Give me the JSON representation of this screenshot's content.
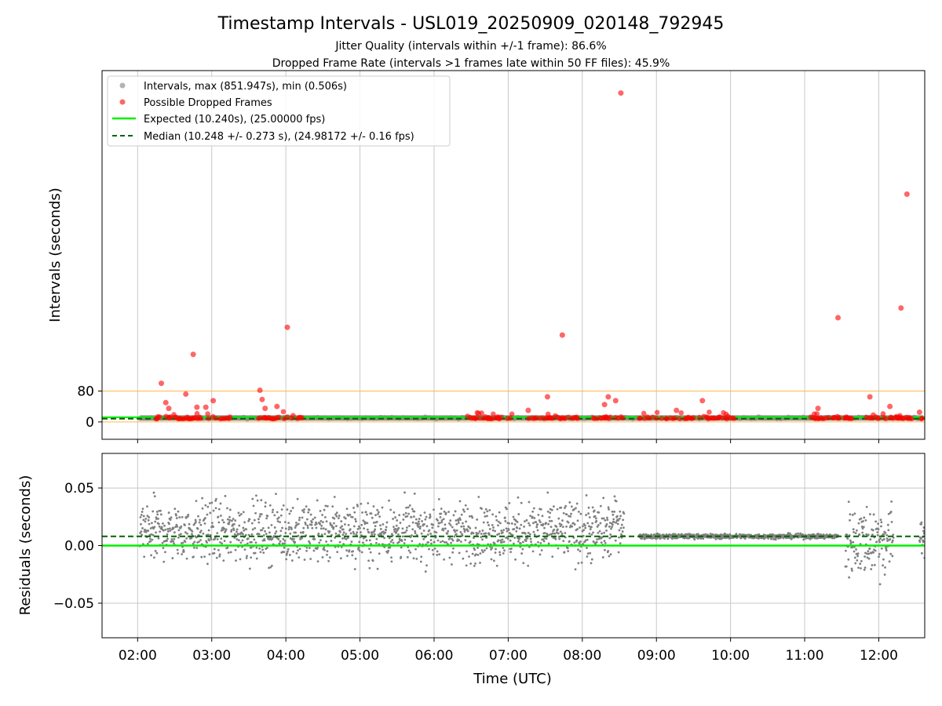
{
  "chart_data": {
    "title": "Timestamp Intervals - USL019_20250909_020148_792945",
    "subtitle_lines": [
      "Jitter Quality (intervals within +/-1 frame): 86.6%",
      "Dropped Frame Rate (intervals >1 frames late within 50 FF files): 45.9%"
    ],
    "xlabel": "Time (UTC)",
    "x_ticks": [
      "02:00",
      "03:00",
      "04:00",
      "05:00",
      "06:00",
      "07:00",
      "08:00",
      "09:00",
      "10:00",
      "11:00",
      "12:00"
    ],
    "colors": {
      "intervals": "#808080",
      "dropped": "#ff0000",
      "expected": "#00ee00",
      "median": "#006400",
      "threshold": "#ffb84d",
      "grid": "#c8c8c8"
    },
    "panels": [
      {
        "type": "scatter",
        "ylabel": "Intervals (seconds)",
        "y_ticks": [
          "0",
          "80"
        ],
        "ylim": [
          -45,
          910
        ],
        "xlim_hours": [
          1.52,
          12.62
        ],
        "threshold_lines": [
          0,
          80
        ],
        "legend_position": "upper-left",
        "legend": [
          {
            "kind": "marker",
            "color": "#808080",
            "label": "Intervals, max (851.947s), min (0.506s)"
          },
          {
            "kind": "marker",
            "color": "#ff0000",
            "label": "Possible Dropped Frames"
          },
          {
            "kind": "line",
            "color": "#00ee00",
            "label": "Expected (10.240s), (25.00000 fps)"
          },
          {
            "kind": "dashed",
            "color": "#006400",
            "label": "Median (10.248 +/- 0.273 s), (24.98172 +/- 0.16 fps)"
          }
        ],
        "expected_value": 10.24,
        "median_value": 10.248,
        "intervals_band": {
          "x_start": 2.03,
          "x_end": 12.6,
          "value": 10.24
        },
        "dropped_clusters": [
          [
            2.25,
            3.25
          ],
          [
            3.63,
            4.23
          ],
          [
            6.45,
            7.08
          ],
          [
            7.25,
            7.98
          ],
          [
            8.15,
            8.55
          ],
          [
            8.77,
            9.52
          ],
          [
            9.58,
            10.05
          ],
          [
            11.07,
            11.65
          ],
          [
            11.83,
            12.45
          ],
          [
            12.55,
            12.62
          ]
        ],
        "dropped_outliers": [
          {
            "x": 2.32,
            "y": 100
          },
          {
            "x": 2.38,
            "y": 50
          },
          {
            "x": 2.42,
            "y": 35
          },
          {
            "x": 2.65,
            "y": 72
          },
          {
            "x": 2.75,
            "y": 175
          },
          {
            "x": 2.8,
            "y": 38
          },
          {
            "x": 2.92,
            "y": 38
          },
          {
            "x": 3.02,
            "y": 55
          },
          {
            "x": 3.65,
            "y": 82
          },
          {
            "x": 3.68,
            "y": 58
          },
          {
            "x": 3.72,
            "y": 35
          },
          {
            "x": 3.88,
            "y": 40
          },
          {
            "x": 4.02,
            "y": 245
          },
          {
            "x": 6.6,
            "y": 22
          },
          {
            "x": 7.27,
            "y": 30
          },
          {
            "x": 7.53,
            "y": 65
          },
          {
            "x": 7.73,
            "y": 225
          },
          {
            "x": 8.3,
            "y": 45
          },
          {
            "x": 8.35,
            "y": 65
          },
          {
            "x": 8.45,
            "y": 55
          },
          {
            "x": 8.52,
            "y": 851.947
          },
          {
            "x": 9.27,
            "y": 30
          },
          {
            "x": 9.62,
            "y": 55
          },
          {
            "x": 11.18,
            "y": 35
          },
          {
            "x": 11.45,
            "y": 270
          },
          {
            "x": 11.88,
            "y": 65
          },
          {
            "x": 12.15,
            "y": 40
          },
          {
            "x": 12.3,
            "y": 295
          },
          {
            "x": 12.38,
            "y": 590
          },
          {
            "x": 12.55,
            "y": 25
          }
        ]
      },
      {
        "type": "scatter",
        "ylabel": "Residuals (seconds)",
        "y_ticks": [
          "0.05",
          "0.00",
          "−0.05"
        ],
        "ylim": [
          -0.08,
          0.08
        ],
        "expected_value": 0,
        "median_value": 0.008,
        "residual_regions": [
          {
            "x_start": 2.03,
            "x_end": 8.4,
            "center": 0.012,
            "spread": 0.024
          },
          {
            "x_start": 8.4,
            "x_end": 8.57,
            "center": 0.02,
            "spread": 0.02
          },
          {
            "x_start": 8.77,
            "x_end": 11.45,
            "center": 0.008,
            "spread": 0.002
          },
          {
            "x_start": 11.55,
            "x_end": 12.2,
            "center": 0.005,
            "spread": 0.03
          },
          {
            "x_start": 12.55,
            "x_end": 12.62,
            "center": 0.01,
            "spread": 0.02
          }
        ]
      }
    ]
  }
}
